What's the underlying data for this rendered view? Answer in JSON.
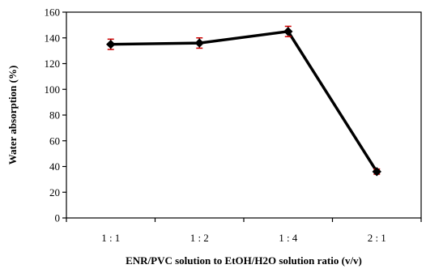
{
  "chart_data": {
    "type": "line",
    "title": "",
    "xlabel": "ENR/PVC solution to EtOH/H2O solution ratio (v/v)",
    "ylabel": "Water absorption (%)",
    "categories": [
      "1 : 1",
      "1 : 2",
      "1 : 4",
      "2 : 1"
    ],
    "series": [
      {
        "values": [
          135,
          136,
          145,
          36
        ],
        "errors": [
          4,
          4,
          4,
          2
        ],
        "line_color": "#000000",
        "marker": "diamond",
        "error_bar_color": "#cc0000"
      }
    ],
    "ylim": [
      0,
      160
    ],
    "yticks": [
      0,
      20,
      40,
      60,
      80,
      100,
      120,
      140,
      160
    ],
    "grid": false,
    "legend": "none"
  }
}
